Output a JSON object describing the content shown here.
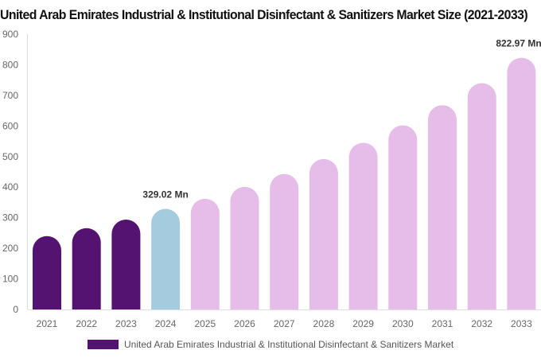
{
  "chart_data": {
    "type": "bar",
    "title": "United Arab Emirates Industrial & Institutional Disinfectant & Sanitizers Market Size (2021-2033)",
    "categories": [
      "2021",
      "2022",
      "2023",
      "2024",
      "2025",
      "2026",
      "2027",
      "2028",
      "2029",
      "2030",
      "2031",
      "2032",
      "2033"
    ],
    "series": [
      {
        "name": "United Arab Emirates Industrial & Institutional Disinfectant & Sanitizers Market",
        "values": [
          240,
          266,
          294,
          329.02,
          362,
          401,
          443,
          492,
          545,
          602,
          668,
          740,
          822.97
        ]
      }
    ],
    "data_labels": {
      "3": "329.02 Mn",
      "12": "822.97 Mn"
    },
    "ylim": [
      0,
      900
    ],
    "yticks": [
      0,
      100,
      200,
      300,
      400,
      500,
      600,
      700,
      800,
      900
    ],
    "grid": false,
    "legend": "bottom",
    "colors": {
      "historical": "#541371",
      "base_year": "#a5cbdf",
      "forecast": "#e6bde9"
    }
  }
}
